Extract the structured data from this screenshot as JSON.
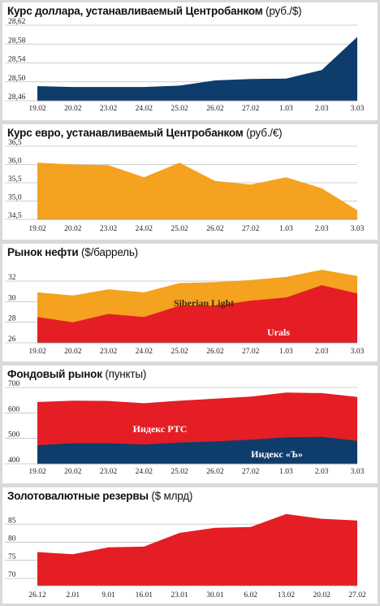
{
  "chart_data": [
    {
      "type": "area",
      "title": "Курс доллара, устанавливаемый Центробанком",
      "unit": "(руб./$)",
      "categories": [
        "19.02",
        "20.02",
        "23.02",
        "24.02",
        "25.02",
        "26.02",
        "27.02",
        "1.03",
        "2.03",
        "3.03"
      ],
      "yticks": [
        "28,62",
        "28,58",
        "28,54",
        "28,50",
        "28,46"
      ],
      "ylim": [
        28.46,
        28.62
      ],
      "series": [
        {
          "values": [
            28.491,
            28.489,
            28.489,
            28.489,
            28.492,
            28.503,
            28.506,
            28.507,
            28.525,
            28.595
          ],
          "color": "#0e3d6b"
        }
      ]
    },
    {
      "type": "area",
      "title": "Курс евро, устанавливаемый Центробанком",
      "unit": "(руб./€)",
      "categories": [
        "19.02",
        "20.02",
        "23.02",
        "24.02",
        "25.02",
        "26.02",
        "27.02",
        "1.03",
        "2.03",
        "3.03"
      ],
      "yticks": [
        "36,5",
        "36,0",
        "35,5",
        "35,0",
        "34,5"
      ],
      "ylim": [
        34.5,
        36.5
      ],
      "series": [
        {
          "values": [
            36.05,
            36.0,
            35.98,
            35.65,
            36.05,
            35.55,
            35.45,
            35.65,
            35.35,
            34.75
          ],
          "color": "#f4a21f"
        }
      ]
    },
    {
      "type": "area",
      "title": "Рынок нефти",
      "unit": "($/баррель)",
      "categories": [
        "19.02",
        "20.02",
        "23.02",
        "24.02",
        "25.02",
        "26.02",
        "27.02",
        "1.03",
        "2.03",
        "3.03"
      ],
      "yticks": [
        "32",
        "30",
        "28",
        "26"
      ],
      "ylim": [
        26,
        33.5
      ],
      "series": [
        {
          "name": "Siberian Light",
          "values": [
            30.9,
            30.6,
            31.2,
            30.9,
            31.8,
            31.9,
            32.1,
            32.4,
            33.1,
            32.5
          ],
          "color": "#f4a21f"
        },
        {
          "name": "Urals",
          "values": [
            28.5,
            28.0,
            28.8,
            28.5,
            29.6,
            29.6,
            30.1,
            30.4,
            31.6,
            30.8
          ],
          "color": "#e41e24"
        }
      ]
    },
    {
      "type": "area",
      "title": "Фондовый рынок",
      "unit": "(пункты)",
      "categories": [
        "19.02",
        "20.02",
        "23.02",
        "24.02",
        "25.02",
        "26.02",
        "27.02",
        "1.03",
        "2.03",
        "3.03"
      ],
      "yticks": [
        "700",
        "600",
        "500",
        "400"
      ],
      "ylim": [
        400,
        700
      ],
      "series": [
        {
          "name": "Индекс РТС",
          "values": [
            643,
            648,
            647,
            638,
            648,
            656,
            664,
            680,
            678,
            663
          ],
          "color": "#e41e24"
        },
        {
          "name": "Индекс «Ъ»",
          "values": [
            473,
            481,
            481,
            476,
            484,
            488,
            495,
            504,
            506,
            490
          ],
          "color": "#0e3d6b"
        }
      ]
    },
    {
      "type": "area",
      "title": "Золотовалютные резервы",
      "unit": "($ млрд)",
      "categories": [
        "26.12",
        "2.01",
        "9.01",
        "16.01",
        "23.01",
        "30.01",
        "6.02",
        "13.02",
        "20.02",
        "27.02"
      ],
      "yticks": [
        "85",
        "80",
        "75",
        "70"
      ],
      "ylim": [
        68,
        90
      ],
      "series": [
        {
          "values": [
            77.3,
            76.7,
            78.6,
            78.8,
            82.6,
            84.0,
            84.2,
            87.8,
            86.5,
            86.0
          ],
          "color": "#e41e24"
        }
      ]
    }
  ]
}
